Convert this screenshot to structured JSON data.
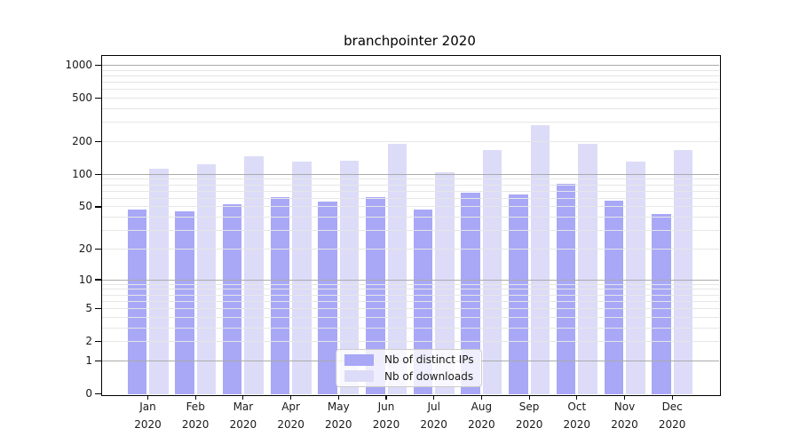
{
  "chart_data": {
    "type": "bar",
    "title": "branchpointer 2020",
    "categories": [
      "Jan",
      "Feb",
      "Mar",
      "Apr",
      "May",
      "Jun",
      "Jul",
      "Aug",
      "Sep",
      "Oct",
      "Nov",
      "Dec"
    ],
    "category_year": "2020",
    "series": [
      {
        "name": "Nb of distinct IPs",
        "color": "#a8a8f7",
        "values": [
          47,
          45,
          53,
          62,
          56,
          62,
          47,
          68,
          65,
          82,
          57,
          43
        ]
      },
      {
        "name": "Nb of downloads",
        "color": "#dcdcf8",
        "values": [
          112,
          125,
          148,
          130,
          134,
          190,
          105,
          168,
          285,
          190,
          131,
          167
        ]
      }
    ],
    "y_axis": {
      "scale": "log1p",
      "tick_values": [
        0,
        1,
        2,
        5,
        10,
        20,
        50,
        100,
        200,
        500,
        1000
      ],
      "tick_labels": [
        "0",
        "1",
        "2",
        "5",
        "10",
        "20",
        "50",
        "100",
        "200",
        "500",
        "1000"
      ],
      "major_grid_values": [
        1,
        10,
        100,
        1000
      ],
      "minor_grid_decades": [
        1,
        10,
        100
      ],
      "range_max": 1230
    },
    "grid": true,
    "legend_position": "lower center inside"
  },
  "colors": {
    "grid_major": "#ababab",
    "grid_minor": "#e6e6e6",
    "axis": "#000000",
    "legend_border": "#cccccc",
    "text": "#1a1a1a"
  }
}
